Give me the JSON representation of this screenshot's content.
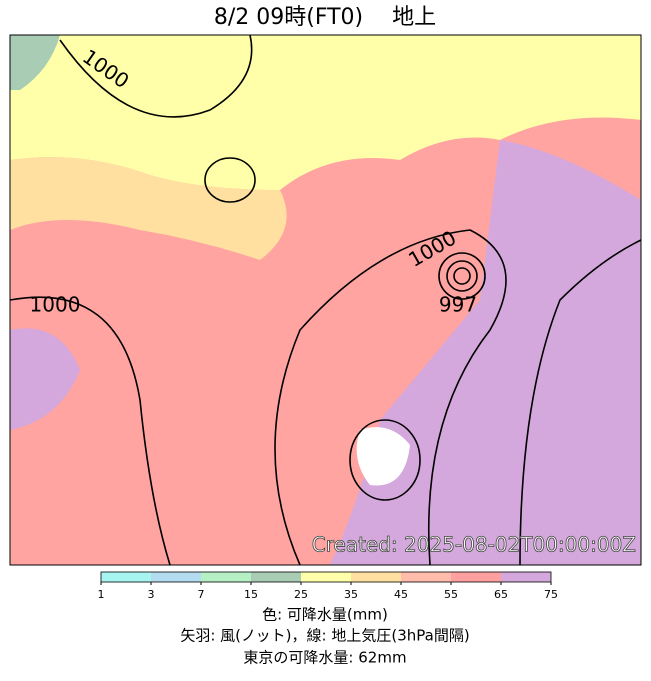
{
  "title": "8/2  09時(FT0)　 地上",
  "map": {
    "isobar_labels": [
      1000,
      1000,
      1000,
      997
    ],
    "created": "Created: 2025-08-02T00:00:00Z"
  },
  "colorbar": {
    "ticks": [
      1,
      3,
      7,
      15,
      25,
      35,
      45,
      55,
      65,
      75
    ],
    "colors": [
      "#a6f5f0",
      "#b4dcf0",
      "#b4f0c4",
      "#a8ccb4",
      "#ffffaa",
      "#ffe0a0",
      "#ffbcaa",
      "#ffa0a0",
      "#d4a8dc"
    ]
  },
  "captions": [
    "色: 可降水量(mm)",
    "矢羽: 風(ノット)，線: 地上気圧(3hPa間隔)",
    "東京の可降水量: 62mm"
  ]
}
